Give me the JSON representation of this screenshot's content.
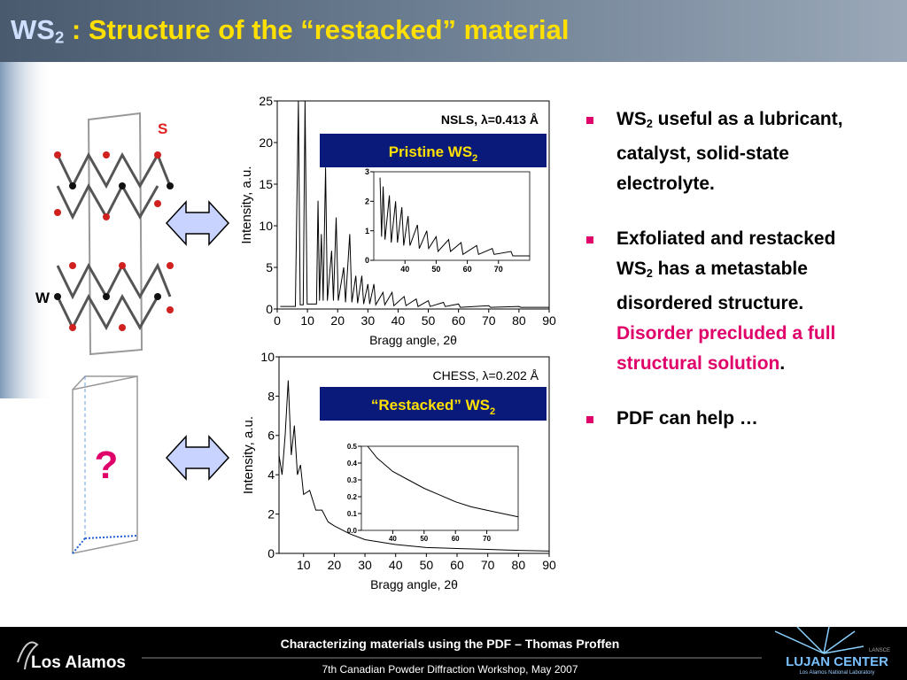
{
  "title": {
    "parts": [
      "WS",
      "2",
      " : Structure of the “restacked” material"
    ]
  },
  "labels": {
    "s": "S",
    "w": "W",
    "unknown": "?"
  },
  "bullets": [
    {
      "parts": [
        "WS",
        "2",
        " useful as a lubricant, catalyst, solid-state electrolyte."
      ]
    },
    {
      "parts": [
        "Exfoliated and restacked WS",
        "2",
        " has a metastable disordered structure.  ",
        "Disorder precluded a full structural solution",
        "."
      ]
    },
    {
      "parts": [
        "PDF can help …"
      ]
    }
  ],
  "footer": {
    "title": "Characterizing materials using the PDF – Thomas Proffen",
    "subtitle": "7th Canadian Powder Diffraction Workshop, May 2007",
    "left_logo": "Los Alamos",
    "right_logo": "LUJAN CENTER",
    "right_small": "LANSCE",
    "right_caption": "Los Alamos National Laboratory"
  },
  "chart_data": [
    {
      "type": "line",
      "ylabel": "Intensity, a.u.",
      "xlabel": "Bragg angle, 2θ",
      "annotation": "NSLS, λ=0.413 Å",
      "banner": [
        "Pristine WS",
        "2"
      ],
      "color": "#000000",
      "xlim": [
        0,
        90
      ],
      "ylim": [
        0,
        25
      ],
      "xticks": [
        0,
        10,
        20,
        30,
        40,
        50,
        60,
        70,
        80,
        90
      ],
      "yticks": [
        0,
        5,
        10,
        15,
        20,
        25
      ],
      "x": [
        1,
        6,
        7,
        7.6,
        8.6,
        9.2,
        9.9,
        13,
        13.5,
        14,
        14.6,
        15.2,
        16,
        16.6,
        18,
        18.6,
        19.5,
        20.2,
        22,
        22.6,
        24,
        24.7,
        26,
        26.6,
        28,
        28.6,
        30,
        30.6,
        32,
        32.6,
        35,
        35.6,
        38,
        38.6,
        42,
        42.6,
        46,
        46.6,
        50,
        50.6,
        55,
        55.6,
        60,
        60.6,
        70,
        70.6,
        80,
        80.6,
        90
      ],
      "values": [
        0.3,
        0.3,
        25,
        0.5,
        0.5,
        25,
        0.6,
        0.6,
        13,
        1,
        9,
        1,
        17,
        1,
        7,
        1,
        11,
        1,
        5,
        0.8,
        9,
        0.8,
        4,
        0.7,
        4,
        0.6,
        3,
        0.6,
        3,
        0.5,
        2,
        0.5,
        2,
        0.4,
        1.5,
        0.4,
        1.2,
        0.3,
        1,
        0.3,
        0.8,
        0.3,
        0.6,
        0.2,
        0.4,
        0.2,
        0.3,
        0.2,
        0.2
      ]
    },
    {
      "type": "line",
      "color": "#000000",
      "xlim": [
        30,
        80
      ],
      "ylim": [
        0,
        3
      ],
      "xticks": [
        40,
        50,
        60,
        70
      ],
      "yticks": [
        0,
        1,
        2,
        3
      ],
      "x": [
        32,
        32.5,
        33,
        33.6,
        35,
        35.6,
        37,
        37.6,
        39,
        39.6,
        41,
        41.6,
        44,
        44.6,
        47,
        47.6,
        50,
        50.6,
        54,
        54.6,
        58,
        58.6,
        63,
        63.6,
        68,
        68.6,
        74,
        74.6,
        80
      ],
      "values": [
        2.8,
        0.8,
        2.5,
        0.7,
        2.2,
        0.6,
        2,
        0.6,
        1.8,
        0.5,
        1.5,
        0.5,
        1.2,
        0.4,
        1,
        0.4,
        0.8,
        0.3,
        0.7,
        0.3,
        0.6,
        0.2,
        0.5,
        0.2,
        0.4,
        0.2,
        0.3,
        0.15,
        0.15
      ]
    },
    {
      "type": "line",
      "ylabel": "Intensity, a.u.",
      "xlabel": "Bragg angle, 2θ",
      "annotation": "CHESS, λ=0.202 Å",
      "banner": [
        "“Restacked” WS",
        "2"
      ],
      "color": "#000000",
      "xlim": [
        2,
        90
      ],
      "ylim": [
        0,
        10
      ],
      "xticks": [
        10,
        20,
        30,
        40,
        50,
        60,
        70,
        80,
        90
      ],
      "yticks": [
        0,
        2,
        4,
        6,
        8,
        10
      ],
      "x": [
        2,
        3,
        4,
        5,
        6,
        7,
        8,
        9,
        10,
        12,
        14,
        16,
        18,
        20,
        25,
        30,
        40,
        50,
        60,
        70,
        80,
        90
      ],
      "values": [
        5,
        4,
        6,
        8.8,
        5,
        6.5,
        4,
        4.5,
        3,
        3.2,
        2.2,
        2.2,
        1.6,
        1.4,
        1,
        0.7,
        0.45,
        0.3,
        0.25,
        0.2,
        0.15,
        0.12
      ]
    },
    {
      "type": "line",
      "color": "#000000",
      "xlim": [
        30,
        80
      ],
      "ylim": [
        0,
        0.5
      ],
      "xticks": [
        40,
        50,
        60,
        70
      ],
      "yticks": [
        {
          "value": 0,
          "label": "0.0"
        },
        0.1,
        0.2,
        0.3,
        0.4,
        0.5
      ],
      "x": [
        32,
        35,
        40,
        45,
        50,
        55,
        60,
        65,
        70,
        75,
        80
      ],
      "values": [
        0.5,
        0.43,
        0.35,
        0.3,
        0.25,
        0.21,
        0.17,
        0.14,
        0.12,
        0.1,
        0.08
      ]
    }
  ]
}
